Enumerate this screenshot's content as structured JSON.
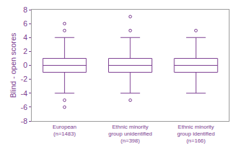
{
  "chart_data": {
    "type": "box",
    "y_label": "Blind - open scores",
    "categories": [
      "European\n(n=1483)",
      "Ethnic minority\ngroup unidentified\n(n=398)",
      "Ethnic minority\ngroup identified\n(n=166)"
    ],
    "boxes": [
      {
        "whisker_low": -4,
        "q1": -1,
        "median": 0,
        "q3": 1,
        "whisker_high": 4,
        "outliers": [
          6,
          5,
          -5,
          -6
        ]
      },
      {
        "whisker_low": -4,
        "q1": -1,
        "median": 0,
        "q3": 1,
        "whisker_high": 4,
        "outliers": [
          7,
          5,
          -5
        ]
      },
      {
        "whisker_low": -4,
        "q1": -1,
        "median": 0,
        "q3": 1,
        "whisker_high": 4,
        "outliers": [
          5
        ]
      }
    ],
    "color": "#7a3b8f",
    "ylim": [
      -8,
      8
    ],
    "yticks": [
      -8,
      -6,
      -4,
      -2,
      0,
      2,
      4,
      6,
      8
    ],
    "grid": false
  }
}
